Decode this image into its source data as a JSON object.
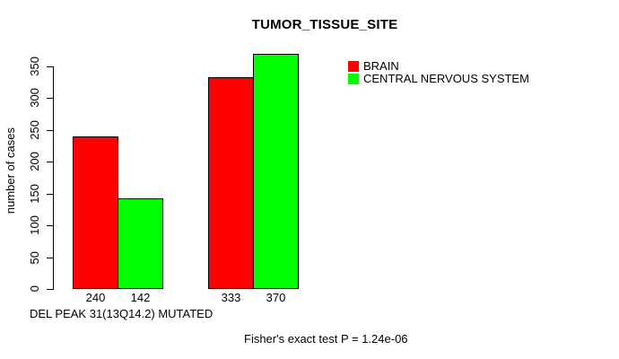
{
  "chart_data": {
    "type": "bar",
    "title": "TUMOR_TISSUE_SITE",
    "ylabel": "number of cases",
    "xlabel": "DEL PEAK 31(13Q14.2) MUTATED",
    "annotation": "Fisher's exact test P = 1.24e-06",
    "categories": [
      "",
      ""
    ],
    "series": [
      {
        "name": "BRAIN",
        "color": "#FF0000",
        "values": [
          240,
          333
        ]
      },
      {
        "name": "CENTRAL NERVOUS SYSTEM",
        "color": "#00FF00",
        "values": [
          142,
          370
        ]
      }
    ],
    "bar_value_labels": [
      [
        240,
        142
      ],
      [
        333,
        370
      ]
    ],
    "axis": {
      "ymin": 0,
      "ymax": 350,
      "yticks": [
        0,
        50,
        100,
        150,
        200,
        250,
        300,
        350
      ]
    },
    "grid": false,
    "legend_position": "top-right",
    "bar_border_color": "#000000",
    "background_color": "#FFFFFF"
  }
}
